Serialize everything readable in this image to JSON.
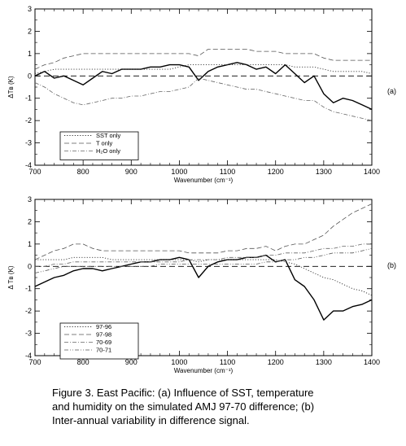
{
  "chart_data": [
    {
      "type": "line",
      "panel_label": "(a)",
      "xlabel": "Wavenumber (cm⁻¹)",
      "ylabel": "ΔTʙ (K)",
      "xlim": [
        700,
        1400
      ],
      "ylim": [
        -4,
        3
      ],
      "xticks": [
        "700",
        "800",
        "900",
        "1000",
        "1100",
        "1200",
        "1300",
        "1400"
      ],
      "yticks": [
        "-4",
        "-3",
        "-2",
        "-1",
        "0",
        "1",
        "2",
        "3"
      ],
      "grid": false,
      "legend_position": "bottom-left",
      "x": [
        700,
        720,
        740,
        760,
        780,
        800,
        820,
        840,
        860,
        880,
        900,
        920,
        940,
        960,
        980,
        1000,
        1020,
        1040,
        1060,
        1080,
        1100,
        1120,
        1140,
        1160,
        1180,
        1200,
        1220,
        1240,
        1260,
        1280,
        1300,
        1320,
        1340,
        1360,
        1380,
        1400
      ],
      "series": [
        {
          "name": "",
          "style": "solid",
          "values": [
            0.0,
            0.2,
            -0.1,
            0.0,
            -0.2,
            -0.4,
            -0.1,
            0.2,
            0.1,
            0.3,
            0.3,
            0.3,
            0.4,
            0.4,
            0.5,
            0.5,
            0.4,
            -0.2,
            0.2,
            0.4,
            0.5,
            0.6,
            0.5,
            0.3,
            0.4,
            0.1,
            0.5,
            0.1,
            -0.3,
            0.0,
            -0.8,
            -1.2,
            -1.0,
            -1.1,
            -1.3,
            -1.5
          ]
        },
        {
          "name": "SST only",
          "style": "dotted",
          "values": [
            0.1,
            0.2,
            0.3,
            0.3,
            0.3,
            0.3,
            0.3,
            0.3,
            0.3,
            0.3,
            0.3,
            0.3,
            0.3,
            0.3,
            0.3,
            0.4,
            0.5,
            0.5,
            0.5,
            0.5,
            0.5,
            0.5,
            0.5,
            0.5,
            0.5,
            0.5,
            0.5,
            0.4,
            0.4,
            0.4,
            0.3,
            0.2,
            0.2,
            0.2,
            0.2,
            0.1
          ]
        },
        {
          "name": "T only",
          "style": "dashed",
          "values": [
            0.3,
            0.5,
            0.6,
            0.8,
            0.9,
            1.0,
            1.0,
            1.0,
            1.0,
            1.0,
            1.0,
            1.0,
            1.0,
            1.0,
            1.0,
            1.0,
            1.0,
            0.9,
            1.2,
            1.2,
            1.2,
            1.2,
            1.2,
            1.1,
            1.1,
            1.1,
            1.0,
            1.0,
            1.0,
            1.0,
            0.8,
            0.7,
            0.7,
            0.7,
            0.7,
            0.7
          ]
        },
        {
          "name": "H₂O only",
          "style": "dashdot",
          "values": [
            -0.3,
            -0.5,
            -0.8,
            -1.0,
            -1.2,
            -1.3,
            -1.2,
            -1.1,
            -1.0,
            -1.0,
            -0.9,
            -0.9,
            -0.8,
            -0.7,
            -0.7,
            -0.6,
            -0.5,
            -0.1,
            -0.2,
            -0.3,
            -0.4,
            -0.5,
            -0.6,
            -0.6,
            -0.7,
            -0.8,
            -0.9,
            -1.0,
            -1.1,
            -1.1,
            -1.4,
            -1.6,
            -1.7,
            -1.8,
            -1.9,
            -2.0
          ]
        }
      ]
    },
    {
      "type": "line",
      "panel_label": "(b)",
      "xlabel": "Wavenumber (cm⁻¹)",
      "ylabel": "Δ Tʙ (K)",
      "xlim": [
        700,
        1400
      ],
      "ylim": [
        -4,
        3
      ],
      "xticks": [
        "700",
        "800",
        "900",
        "1000",
        "1100",
        "1200",
        "1300",
        "1400"
      ],
      "yticks": [
        "-4",
        "-3",
        "-2",
        "-1",
        "0",
        "1",
        "2",
        "3"
      ],
      "grid": false,
      "legend_position": "bottom-left",
      "x": [
        700,
        720,
        740,
        760,
        780,
        800,
        820,
        840,
        860,
        880,
        900,
        920,
        940,
        960,
        980,
        1000,
        1020,
        1040,
        1060,
        1080,
        1100,
        1120,
        1140,
        1160,
        1180,
        1200,
        1220,
        1240,
        1260,
        1280,
        1300,
        1320,
        1340,
        1360,
        1380,
        1400
      ],
      "series": [
        {
          "name": "",
          "style": "solid",
          "values": [
            -0.9,
            -0.7,
            -0.5,
            -0.4,
            -0.2,
            -0.1,
            -0.1,
            -0.2,
            -0.1,
            0.0,
            0.1,
            0.2,
            0.2,
            0.3,
            0.3,
            0.4,
            0.3,
            -0.5,
            0.0,
            0.2,
            0.3,
            0.3,
            0.4,
            0.4,
            0.5,
            0.2,
            0.3,
            -0.6,
            -0.9,
            -1.5,
            -2.4,
            -2.0,
            -2.0,
            -1.8,
            -1.7,
            -1.5
          ]
        },
        {
          "name": "97-96",
          "style": "dotted",
          "values": [
            0.3,
            0.3,
            0.3,
            0.3,
            0.4,
            0.4,
            0.4,
            0.4,
            0.3,
            0.3,
            0.3,
            0.3,
            0.3,
            0.3,
            0.3,
            0.3,
            0.3,
            0.2,
            0.3,
            0.3,
            0.3,
            0.3,
            0.3,
            0.3,
            0.3,
            0.3,
            0.2,
            0.1,
            -0.1,
            -0.3,
            -0.5,
            -0.6,
            -0.8,
            -1.0,
            -1.1,
            -1.3
          ]
        },
        {
          "name": "97-98",
          "style": "dashed",
          "values": [
            0.3,
            0.5,
            0.7,
            0.8,
            1.0,
            1.0,
            0.8,
            0.7,
            0.7,
            0.7,
            0.7,
            0.7,
            0.7,
            0.7,
            0.7,
            0.7,
            0.6,
            0.6,
            0.6,
            0.6,
            0.7,
            0.7,
            0.8,
            0.8,
            0.9,
            0.7,
            0.9,
            1.0,
            1.0,
            1.2,
            1.4,
            1.8,
            2.1,
            2.4,
            2.6,
            2.8
          ]
        },
        {
          "name": "70-69",
          "style": "dashdot",
          "values": [
            0.0,
            0.0,
            0.1,
            0.1,
            0.2,
            0.2,
            0.2,
            0.2,
            0.2,
            0.2,
            0.2,
            0.2,
            0.2,
            0.2,
            0.2,
            0.2,
            0.3,
            0.3,
            0.3,
            0.3,
            0.4,
            0.4,
            0.4,
            0.4,
            0.5,
            0.5,
            0.6,
            0.6,
            0.6,
            0.7,
            0.8,
            0.8,
            0.9,
            0.9,
            1.0,
            1.0
          ]
        },
        {
          "name": "70-71",
          "style": "dashdotdot",
          "values": [
            -0.3,
            -0.2,
            -0.1,
            0.0,
            0.0,
            0.0,
            0.0,
            0.0,
            0.0,
            0.0,
            0.0,
            0.0,
            0.0,
            0.1,
            0.1,
            0.1,
            0.1,
            0.1,
            0.1,
            0.1,
            0.1,
            0.1,
            0.1,
            0.1,
            0.2,
            0.2,
            0.3,
            0.3,
            0.4,
            0.4,
            0.5,
            0.6,
            0.6,
            0.6,
            0.7,
            0.8
          ]
        }
      ]
    }
  ],
  "caption": {
    "line1": "Figure 3. East Pacific: (a) Influence of SST, temperature",
    "line2": "and humidity on the simulated AMJ 97-70 difference; (b)",
    "line3": "Inter-annual variability in difference signal."
  }
}
